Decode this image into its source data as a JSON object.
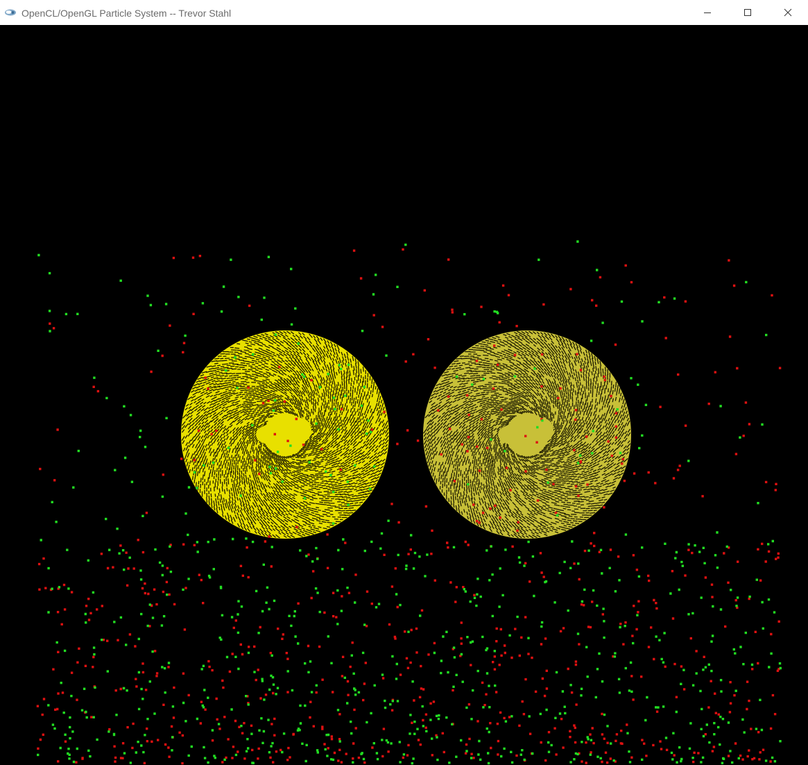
{
  "window": {
    "title": "OpenCL/OpenGL Particle System -- Trevor Stahl",
    "app_icon": "opengl-app-icon",
    "controls": {
      "minimize_icon": "minimize-icon",
      "maximize_icon": "maximize-icon",
      "close_icon": "close-icon"
    }
  },
  "scene": {
    "background_color": "#000000",
    "spheres": [
      {
        "name": "left-sphere",
        "color": "#e8e000",
        "hatch_color": "#1a1800"
      },
      {
        "name": "right-sphere",
        "color": "#c8c038",
        "hatch_color": "#1a1800"
      }
    ],
    "particle_colors": {
      "green": "#22dd22",
      "red": "#dd1111"
    }
  }
}
